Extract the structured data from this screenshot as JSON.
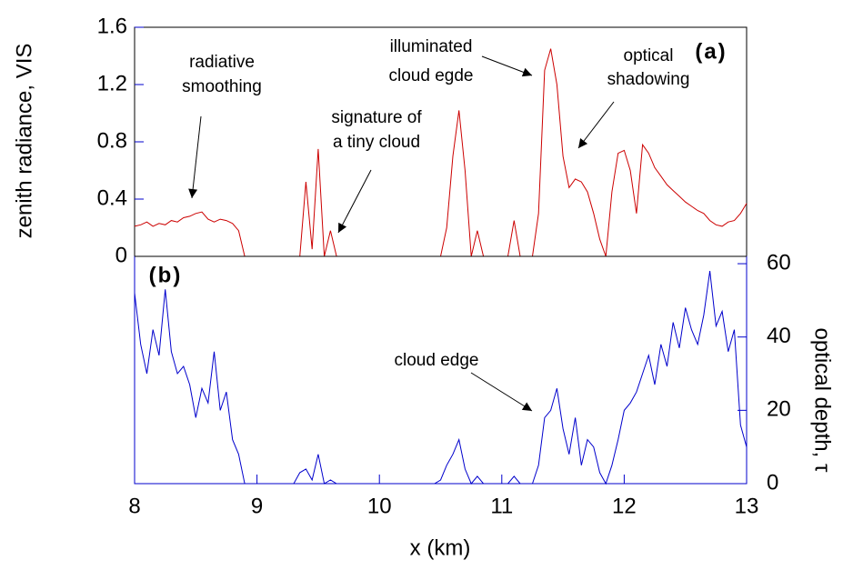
{
  "chart_data": [
    {
      "type": "line",
      "ylabel": "zenith radiance, VIS",
      "panel_label": "(a)",
      "xlim": [
        8,
        13
      ],
      "ylim": [
        0,
        1.6
      ],
      "yticks": [
        0,
        0.4,
        0.8,
        1.2,
        1.6
      ],
      "color": "#cc0000",
      "x": [
        8.0,
        8.05,
        8.1,
        8.15,
        8.2,
        8.25,
        8.3,
        8.35,
        8.4,
        8.45,
        8.5,
        8.55,
        8.6,
        8.65,
        8.7,
        8.75,
        8.8,
        8.85,
        8.9,
        8.95,
        9.0,
        9.05,
        9.1,
        9.15,
        9.2,
        9.25,
        9.3,
        9.35,
        9.4,
        9.45,
        9.5,
        9.55,
        9.6,
        9.65,
        9.7,
        9.75,
        9.8,
        9.85,
        9.9,
        9.95,
        10.0,
        10.05,
        10.1,
        10.15,
        10.2,
        10.25,
        10.3,
        10.35,
        10.4,
        10.45,
        10.5,
        10.55,
        10.6,
        10.65,
        10.7,
        10.75,
        10.8,
        10.85,
        10.9,
        10.95,
        11.0,
        11.05,
        11.1,
        11.15,
        11.2,
        11.25,
        11.3,
        11.35,
        11.4,
        11.45,
        11.5,
        11.55,
        11.6,
        11.65,
        11.7,
        11.75,
        11.8,
        11.85,
        11.9,
        11.95,
        12.0,
        12.05,
        12.1,
        12.15,
        12.2,
        12.25,
        12.3,
        12.35,
        12.4,
        12.45,
        12.5,
        12.55,
        12.6,
        12.65,
        12.7,
        12.75,
        12.8,
        12.85,
        12.9,
        12.95,
        13.0
      ],
      "values": [
        0.21,
        0.22,
        0.24,
        0.21,
        0.23,
        0.22,
        0.25,
        0.24,
        0.27,
        0.28,
        0.3,
        0.31,
        0.26,
        0.24,
        0.26,
        0.25,
        0.23,
        0.18,
        0,
        0,
        0,
        0,
        0,
        0,
        0,
        0,
        0,
        0,
        0.52,
        0.05,
        0.75,
        0,
        0.18,
        0,
        0,
        0,
        0,
        0,
        0,
        0,
        0,
        0,
        0,
        0,
        0,
        0,
        0,
        0,
        0,
        0,
        0,
        0.2,
        0.7,
        1.02,
        0.6,
        0,
        0.18,
        0,
        0,
        0,
        0,
        0,
        0.25,
        0,
        0,
        0,
        0.3,
        1.3,
        1.45,
        1.2,
        0.7,
        0.48,
        0.54,
        0.52,
        0.45,
        0.3,
        0.12,
        0,
        0.45,
        0.72,
        0.74,
        0.6,
        0.3,
        0.78,
        0.72,
        0.62,
        0.56,
        0.5,
        0.46,
        0.42,
        0.38,
        0.35,
        0.32,
        0.3,
        0.25,
        0.22,
        0.21,
        0.24,
        0.25,
        0.3,
        0.37
      ],
      "annotations": [
        [
          "radiative",
          "smoothing"
        ],
        [
          "signature of",
          "a tiny cloud"
        ],
        [
          "illuminated",
          "cloud egde"
        ],
        [
          "optical",
          "shadowing"
        ]
      ]
    },
    {
      "type": "line",
      "ylabel": "optical depth, τ",
      "xlabel": "x (km)",
      "panel_label": "(b)",
      "xlim": [
        8,
        13
      ],
      "xticks": [
        8,
        9,
        10,
        11,
        12,
        13
      ],
      "ylim": [
        0,
        62
      ],
      "yticks": [
        0,
        20,
        40,
        60
      ],
      "color": "#0000cc",
      "x": [
        8.0,
        8.05,
        8.1,
        8.15,
        8.2,
        8.25,
        8.3,
        8.35,
        8.4,
        8.45,
        8.5,
        8.55,
        8.6,
        8.65,
        8.7,
        8.75,
        8.8,
        8.85,
        8.9,
        8.95,
        9.0,
        9.05,
        9.1,
        9.15,
        9.2,
        9.25,
        9.3,
        9.35,
        9.4,
        9.45,
        9.5,
        9.55,
        9.6,
        9.65,
        9.7,
        9.75,
        9.8,
        9.85,
        9.9,
        9.95,
        10.0,
        10.05,
        10.1,
        10.15,
        10.2,
        10.25,
        10.3,
        10.35,
        10.4,
        10.45,
        10.5,
        10.55,
        10.6,
        10.65,
        10.7,
        10.75,
        10.8,
        10.85,
        10.9,
        10.95,
        11.0,
        11.05,
        11.1,
        11.15,
        11.2,
        11.25,
        11.3,
        11.35,
        11.4,
        11.45,
        11.5,
        11.55,
        11.6,
        11.65,
        11.7,
        11.75,
        11.8,
        11.85,
        11.9,
        11.95,
        12.0,
        12.05,
        12.1,
        12.15,
        12.2,
        12.25,
        12.3,
        12.35,
        12.4,
        12.45,
        12.5,
        12.55,
        12.6,
        12.65,
        12.7,
        12.75,
        12.8,
        12.85,
        12.9,
        12.95,
        13.0
      ],
      "values": [
        52,
        38,
        30,
        42,
        35,
        53,
        36,
        30,
        32,
        27,
        18,
        26,
        22,
        36,
        20,
        25,
        12,
        8,
        0,
        0,
        0,
        0,
        0,
        0,
        0,
        0,
        0,
        3,
        4,
        1,
        8,
        0,
        1,
        0,
        0,
        0,
        0,
        0,
        0,
        0,
        0,
        0,
        0,
        0,
        0,
        0,
        0,
        0,
        0,
        0,
        1,
        5,
        8,
        12,
        4,
        0,
        2,
        0,
        0,
        0,
        0,
        0,
        2,
        0,
        0,
        0,
        5,
        18,
        20,
        26,
        15,
        8,
        18,
        5,
        12,
        10,
        3,
        0,
        5,
        12,
        20,
        22,
        25,
        30,
        35,
        27,
        38,
        32,
        44,
        37,
        48,
        42,
        38,
        46,
        58,
        43,
        47,
        36,
        42,
        16,
        10
      ],
      "annotations": [
        [
          "cloud edge"
        ]
      ]
    }
  ]
}
